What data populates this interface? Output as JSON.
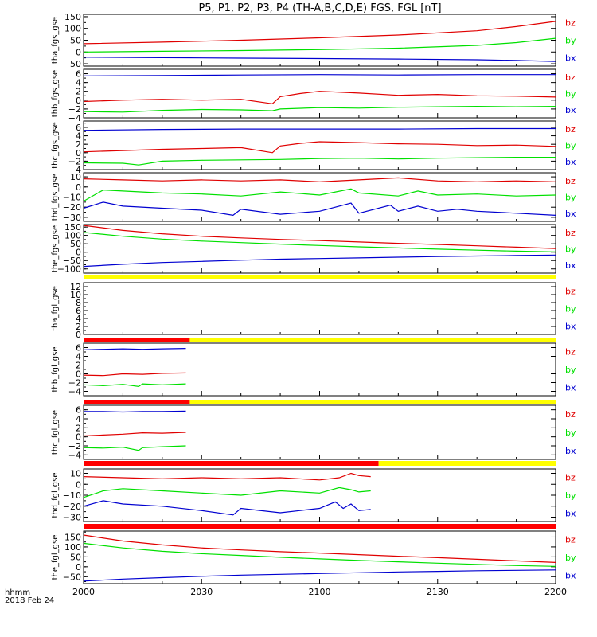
{
  "title": "P5, P1, P2, P3, P4 (TH-A,B,C,D,E) FGS, FGL [nT]",
  "footer": {
    "xunit": "hhmm",
    "date": "2018 Feb 24"
  },
  "colors": {
    "bz": "#e00000",
    "by": "#00e000",
    "bx": "#0000d0",
    "bar_red": "#ff0000",
    "bar_yellow": "#ffff00"
  },
  "chart_data": {
    "type": "line",
    "x_ticks": [
      "2000",
      "2030",
      "2100",
      "2130",
      "2200"
    ],
    "x_tick_minutes": [
      0,
      30,
      60,
      90,
      120
    ],
    "xlim_minutes": [
      0,
      120
    ],
    "grid": false,
    "panels": [
      {
        "ylabel": "tha_fgs_gse",
        "ylim": [
          -60,
          160
        ],
        "yticks": [
          "150",
          "100",
          "50",
          "0",
          "−50"
        ],
        "ytick_values": [
          150,
          100,
          50,
          0,
          -50
        ],
        "series": [
          {
            "name": "bz",
            "x": [
              0,
              20,
              40,
              60,
              80,
              100,
              110,
              120
            ],
            "values": [
              35,
              42,
              50,
              60,
              72,
              90,
              108,
              130
            ]
          },
          {
            "name": "by",
            "x": [
              0,
              20,
              40,
              60,
              80,
              100,
              110,
              120
            ],
            "values": [
              0,
              3,
              6,
              10,
              16,
              28,
              40,
              58
            ]
          },
          {
            "name": "bx",
            "x": [
              0,
              20,
              40,
              60,
              80,
              100,
              110,
              120
            ],
            "values": [
              -22,
              -24,
              -26,
              -28,
              -30,
              -33,
              -36,
              -40
            ]
          }
        ]
      },
      {
        "ylabel": "thb_fgs_gse",
        "ylim": [
          -4,
          7
        ],
        "yticks": [
          "6",
          "4",
          "2",
          "0",
          "−2",
          "−4"
        ],
        "ytick_values": [
          6,
          4,
          2,
          0,
          -2,
          -4
        ],
        "series": [
          {
            "name": "bz",
            "x": [
              0,
              10,
              20,
              30,
              40,
              48,
              50,
              55,
              60,
              70,
              80,
              90,
              100,
              110,
              120
            ],
            "values": [
              -0.3,
              0.0,
              0.2,
              0.0,
              0.2,
              -0.8,
              0.8,
              1.5,
              2.0,
              1.6,
              1.1,
              1.3,
              1.0,
              0.9,
              0.7
            ]
          },
          {
            "name": "by",
            "x": [
              0,
              10,
              20,
              30,
              40,
              48,
              50,
              60,
              70,
              80,
              90,
              100,
              110,
              120
            ],
            "values": [
              -2.6,
              -2.7,
              -2.3,
              -2.1,
              -2.2,
              -2.4,
              -2.0,
              -1.7,
              -1.8,
              -1.6,
              -1.5,
              -1.4,
              -1.5,
              -1.4
            ]
          },
          {
            "name": "bx",
            "x": [
              0,
              20,
              40,
              60,
              80,
              100,
              120
            ],
            "values": [
              5.5,
              5.6,
              5.7,
              5.8,
              5.7,
              5.8,
              5.8
            ]
          }
        ]
      },
      {
        "ylabel": "thc_fgs_gse",
        "ylim": [
          -4,
          7.5
        ],
        "yticks": [
          "6",
          "4",
          "2",
          "0",
          "−2",
          "−4"
        ],
        "ytick_values": [
          6,
          4,
          2,
          0,
          -2,
          -4
        ],
        "series": [
          {
            "name": "bz",
            "x": [
              0,
              10,
              20,
              30,
              40,
              48,
              50,
              55,
              60,
              70,
              80,
              90,
              100,
              110,
              120
            ],
            "values": [
              0.2,
              0.5,
              0.8,
              1.0,
              1.2,
              0.0,
              1.6,
              2.2,
              2.6,
              2.4,
              2.1,
              2.0,
              1.7,
              1.8,
              1.5
            ]
          },
          {
            "name": "by",
            "x": [
              0,
              10,
              14,
              20,
              30,
              40,
              50,
              60,
              70,
              80,
              90,
              100,
              110,
              120
            ],
            "values": [
              -2.4,
              -2.5,
              -2.9,
              -2.0,
              -1.8,
              -1.7,
              -1.6,
              -1.4,
              -1.3,
              -1.5,
              -1.3,
              -1.2,
              -1.1,
              -1.1
            ]
          },
          {
            "name": "bx",
            "x": [
              0,
              20,
              40,
              60,
              80,
              100,
              120
            ],
            "values": [
              5.3,
              5.5,
              5.6,
              5.6,
              5.6,
              5.7,
              5.7
            ]
          }
        ]
      },
      {
        "ylabel": "thd_fgs_gse",
        "ylim": [
          -34,
          14
        ],
        "yticks": [
          "10",
          "0",
          "−10",
          "−20",
          "−30"
        ],
        "ytick_values": [
          10,
          0,
          -10,
          -20,
          -30
        ],
        "series": [
          {
            "name": "bz",
            "x": [
              0,
              10,
              20,
              30,
              40,
              50,
              60,
              70,
              80,
              90,
              100,
              110,
              120
            ],
            "values": [
              8,
              7,
              6,
              7,
              6,
              7,
              5,
              7,
              9,
              6,
              5,
              6,
              5
            ]
          },
          {
            "name": "by",
            "x": [
              0,
              5,
              10,
              20,
              30,
              40,
              50,
              60,
              68,
              70,
              80,
              85,
              90,
              100,
              110,
              120
            ],
            "values": [
              -14,
              -3,
              -4,
              -6,
              -7,
              -9,
              -5,
              -8,
              -2,
              -6,
              -9,
              -4,
              -8,
              -7,
              -9,
              -8
            ]
          },
          {
            "name": "bx",
            "x": [
              0,
              5,
              10,
              20,
              30,
              38,
              40,
              50,
              60,
              68,
              70,
              78,
              80,
              85,
              90,
              95,
              100,
              110,
              120
            ],
            "values": [
              -21,
              -15,
              -19,
              -21,
              -23,
              -28,
              -22,
              -27,
              -24,
              -16,
              -26,
              -18,
              -24,
              -19,
              -24,
              -22,
              -24,
              -26,
              -28
            ]
          }
        ]
      },
      {
        "ylabel": "the_fgs_gse",
        "ylim": [
          -125,
          165
        ],
        "yticks": [
          "150",
          "100",
          "50",
          "0",
          "−50",
          "−100"
        ],
        "ytick_values": [
          150,
          100,
          50,
          0,
          -50,
          -100
        ],
        "series": [
          {
            "name": "bz",
            "x": [
              0,
              10,
              20,
              30,
              40,
              50,
              60,
              70,
              80,
              90,
              100,
              110,
              120
            ],
            "values": [
              160,
              130,
              110,
              95,
              85,
              76,
              69,
              61,
              53,
              46,
              38,
              30,
              22
            ]
          },
          {
            "name": "by",
            "x": [
              0,
              10,
              20,
              30,
              40,
              50,
              60,
              70,
              80,
              90,
              100,
              110,
              120
            ],
            "values": [
              118,
              95,
              78,
              66,
              57,
              48,
              40,
              32,
              25,
              18,
              12,
              6,
              2
            ]
          },
          {
            "name": "bx",
            "x": [
              0,
              10,
              20,
              30,
              40,
              50,
              60,
              70,
              80,
              90,
              100,
              110,
              120
            ],
            "values": [
              -85,
              -72,
              -62,
              -55,
              -48,
              -42,
              -38,
              -34,
              -30,
              -26,
              -23,
              -20,
              -17
            ]
          }
        ]
      },
      {
        "ylabel": "tha_fgl_gse",
        "ylim": [
          0,
          13
        ],
        "yticks": [
          "12",
          "10",
          "8",
          "6",
          "4",
          "2",
          "0"
        ],
        "ytick_values": [
          12,
          10,
          8,
          6,
          4,
          2,
          0
        ],
        "bars": [
          {
            "color": "yellow",
            "from": 0,
            "to": 120
          }
        ],
        "series": []
      },
      {
        "ylabel": "thb_fgl_gse",
        "ylim": [
          -5,
          7
        ],
        "yticks": [
          "6",
          "4",
          "2",
          "0",
          "−2",
          "−4"
        ],
        "ytick_values": [
          6,
          4,
          2,
          0,
          -2,
          -4
        ],
        "bars": [
          {
            "color": "red",
            "from": 0,
            "to": 27
          },
          {
            "color": "yellow",
            "from": 27,
            "to": 120
          }
        ],
        "series": [
          {
            "name": "bz",
            "x": [
              0,
              5,
              10,
              15,
              20,
              26
            ],
            "values": [
              -0.3,
              -0.4,
              0.0,
              -0.1,
              0.1,
              0.2
            ]
          },
          {
            "name": "by",
            "x": [
              0,
              5,
              10,
              14,
              15,
              20,
              26
            ],
            "values": [
              -2.5,
              -2.7,
              -2.4,
              -2.9,
              -2.3,
              -2.5,
              -2.3
            ]
          },
          {
            "name": "bx",
            "x": [
              0,
              5,
              10,
              15,
              20,
              26
            ],
            "values": [
              5.5,
              5.6,
              5.7,
              5.6,
              5.7,
              5.8
            ]
          }
        ]
      },
      {
        "ylabel": "thc_fgl_gse",
        "ylim": [
          -5,
          7
        ],
        "yticks": [
          "6",
          "4",
          "2",
          "0",
          "−2",
          "−4"
        ],
        "ytick_values": [
          6,
          4,
          2,
          0,
          -2,
          -4
        ],
        "bars": [
          {
            "color": "red",
            "from": 0,
            "to": 27
          },
          {
            "color": "yellow",
            "from": 27,
            "to": 120
          }
        ],
        "series": [
          {
            "name": "bz",
            "x": [
              0,
              5,
              10,
              15,
              20,
              26
            ],
            "values": [
              0.2,
              0.4,
              0.6,
              0.9,
              0.8,
              1.0
            ]
          },
          {
            "name": "by",
            "x": [
              0,
              5,
              10,
              14,
              15,
              20,
              26
            ],
            "values": [
              -2.4,
              -2.5,
              -2.3,
              -3.0,
              -2.4,
              -2.2,
              -2.0
            ]
          },
          {
            "name": "bx",
            "x": [
              0,
              5,
              10,
              15,
              20,
              26
            ],
            "values": [
              5.6,
              5.6,
              5.5,
              5.6,
              5.6,
              5.7
            ]
          }
        ]
      },
      {
        "ylabel": "thd_fgl_gse",
        "ylim": [
          -34,
          14
        ],
        "yticks": [
          "10",
          "0",
          "−10",
          "−20",
          "−30"
        ],
        "ytick_values": [
          10,
          0,
          -10,
          -20,
          -30
        ],
        "bars": [
          {
            "color": "red",
            "from": 0,
            "to": 75
          },
          {
            "color": "yellow",
            "from": 75,
            "to": 120
          }
        ],
        "series": [
          {
            "name": "bz",
            "x": [
              0,
              10,
              20,
              30,
              40,
              50,
              60,
              65,
              68,
              70,
              73
            ],
            "values": [
              7,
              6,
              5,
              6,
              5,
              6,
              4,
              6,
              10,
              8,
              7
            ]
          },
          {
            "name": "by",
            "x": [
              0,
              5,
              10,
              20,
              30,
              40,
              50,
              60,
              65,
              68,
              70,
              73
            ],
            "values": [
              -12,
              -6,
              -4,
              -6,
              -8,
              -10,
              -6,
              -8,
              -3,
              -5,
              -7,
              -6
            ]
          },
          {
            "name": "bx",
            "x": [
              0,
              5,
              10,
              20,
              30,
              38,
              40,
              50,
              60,
              64,
              66,
              68,
              70,
              73
            ],
            "values": [
              -20,
              -15,
              -18,
              -20,
              -24,
              -28,
              -22,
              -26,
              -22,
              -16,
              -22,
              -18,
              -24,
              -23
            ]
          }
        ]
      },
      {
        "ylabel": "the_fgl_gse",
        "ylim": [
          -85,
          180
        ],
        "yticks": [
          "150",
          "100",
          "50",
          "0",
          "−50"
        ],
        "ytick_values": [
          150,
          100,
          50,
          0,
          -50
        ],
        "bars": [
          {
            "color": "red",
            "from": 0,
            "to": 120
          }
        ],
        "series": [
          {
            "name": "bz",
            "x": [
              0,
              10,
              20,
              30,
              40,
              50,
              60,
              70,
              80,
              90,
              100,
              110,
              120
            ],
            "values": [
              160,
              130,
              110,
              95,
              85,
              76,
              69,
              61,
              53,
              46,
              38,
              30,
              22
            ]
          },
          {
            "name": "by",
            "x": [
              0,
              10,
              20,
              30,
              40,
              50,
              60,
              70,
              80,
              90,
              100,
              110,
              120
            ],
            "values": [
              118,
              95,
              78,
              66,
              57,
              48,
              40,
              32,
              25,
              18,
              12,
              6,
              2
            ]
          },
          {
            "name": "bx",
            "x": [
              0,
              10,
              20,
              30,
              40,
              50,
              60,
              70,
              80,
              90,
              100,
              110,
              120
            ],
            "values": [
              -72,
              -62,
              -55,
              -48,
              -42,
              -38,
              -34,
              -30,
              -26,
              -23,
              -20,
              -18,
              -16
            ]
          }
        ]
      }
    ]
  }
}
